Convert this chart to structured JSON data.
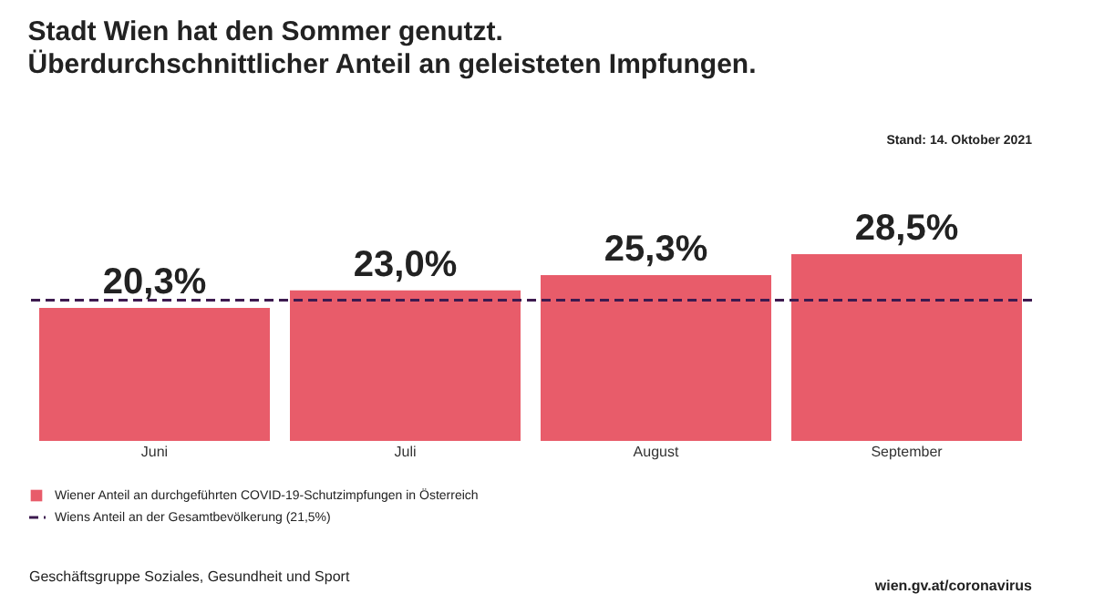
{
  "chart_data": {
    "type": "bar",
    "title": "Stadt Wien hat den Sommer genutzt.",
    "subtitle": "Überdurchschnittlicher Anteil an geleisteten Impfungen.",
    "categories": [
      "Juni",
      "Juli",
      "August",
      "September"
    ],
    "series": [
      {
        "name": "Wiener Anteil an durchgeführten COVID-19-Schutzimpfungen in Österreich",
        "color": "#e85c6a",
        "values": [
          20.3,
          23.0,
          25.3,
          28.5
        ],
        "value_labels": [
          "20,3%",
          "23,0%",
          "25,3%",
          "28,5%"
        ]
      }
    ],
    "ref_lines": [
      {
        "axis": "y",
        "value": 21.5,
        "label": "Wiens Anteil an der Gesamtbevölkerung (21,5%)",
        "color": "#3d1a4f",
        "line_style": "dashed"
      }
    ],
    "legend": "bottom left",
    "annotations": [
      "Stand: 14. Oktober 2021",
      "Geschäftsgruppe Soziales, Gesundheit und Sport",
      "wien.gv.at/coronavirus"
    ]
  }
}
